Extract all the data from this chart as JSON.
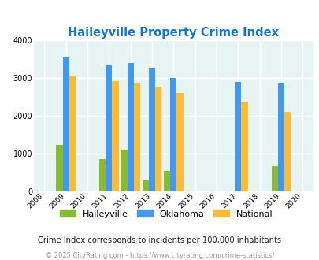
{
  "title": "Haileyville Property Crime Index",
  "years": [
    2009,
    2011,
    2012,
    2013,
    2014,
    2017,
    2019
  ],
  "haileyville": [
    1220,
    850,
    1100,
    290,
    530,
    0,
    660
  ],
  "oklahoma": [
    3570,
    3340,
    3400,
    3270,
    3000,
    2900,
    2870
  ],
  "national": [
    3040,
    2920,
    2870,
    2740,
    2600,
    2380,
    2110
  ],
  "bar_colors": {
    "haileyville": "#88bb33",
    "oklahoma": "#4499ee",
    "national": "#ffbb33"
  },
  "xlim": [
    2007.5,
    2020.5
  ],
  "ylim": [
    0,
    4000
  ],
  "yticks": [
    0,
    1000,
    2000,
    3000,
    4000
  ],
  "xticks": [
    2008,
    2009,
    2010,
    2011,
    2012,
    2013,
    2014,
    2015,
    2016,
    2017,
    2018,
    2019,
    2020
  ],
  "background_color": "#e8f4f4",
  "grid_color": "#ffffff",
  "title_color": "#1177cc",
  "subtitle": "Crime Index corresponds to incidents per 100,000 inhabitants",
  "footer": "© 2025 CityRating.com - https://www.cityrating.com/crime-statistics/",
  "legend_labels": [
    "Haileyville",
    "Oklahoma",
    "National"
  ],
  "bar_width": 0.3
}
